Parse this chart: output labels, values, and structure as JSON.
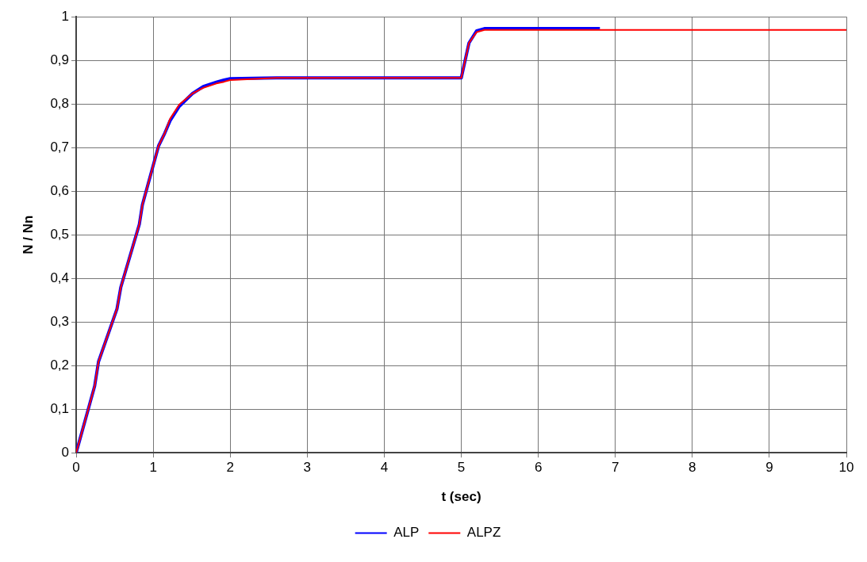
{
  "chart_data": {
    "type": "line",
    "xlabel": "t (sec)",
    "ylabel": "N / Nn",
    "xlim": [
      0,
      10
    ],
    "xticks": [
      0,
      1,
      2,
      3,
      4,
      5,
      6,
      7,
      8,
      9,
      10
    ],
    "ylim": [
      0,
      1
    ],
    "yticks": [
      {
        "value": 0,
        "label": "0"
      },
      {
        "value": 0.1,
        "label": "0,1"
      },
      {
        "value": 0.2,
        "label": "0,2"
      },
      {
        "value": 0.3,
        "label": "0,3"
      },
      {
        "value": 0.4,
        "label": "0,4"
      },
      {
        "value": 0.5,
        "label": "0,5"
      },
      {
        "value": 0.6,
        "label": "0,6"
      },
      {
        "value": 0.7,
        "label": "0,7"
      },
      {
        "value": 0.8,
        "label": "0,8"
      },
      {
        "value": 0.9,
        "label": "0,9"
      },
      {
        "value": 1,
        "label": "1"
      }
    ],
    "grid": true,
    "legend": "bottom",
    "marker": "none",
    "line_style": "solid",
    "series": [
      {
        "name": "ALP",
        "color": "#0000ff",
        "x": [
          0,
          0.24,
          0.29,
          0.53,
          0.58,
          0.82,
          0.86,
          1.07,
          1.15,
          1.22,
          1.34,
          1.51,
          1.65,
          1.82,
          1.92,
          2.0,
          2.6,
          5.0,
          5.05,
          5.1,
          5.2,
          5.3,
          6.8
        ],
        "values": [
          0,
          0.153,
          0.209,
          0.33,
          0.38,
          0.524,
          0.569,
          0.704,
          0.733,
          0.762,
          0.795,
          0.824,
          0.84,
          0.85,
          0.855,
          0.858,
          0.86,
          0.86,
          0.9,
          0.94,
          0.968,
          0.973,
          0.973
        ]
      },
      {
        "name": "ALPZ",
        "color": "#ff0000",
        "x": [
          0,
          0.24,
          0.29,
          0.53,
          0.58,
          0.82,
          0.86,
          1.07,
          1.15,
          1.22,
          1.34,
          1.51,
          1.65,
          1.82,
          1.92,
          2.0,
          2.6,
          5.0,
          5.05,
          5.1,
          5.2,
          5.3,
          10
        ],
        "values": [
          0,
          0.153,
          0.209,
          0.33,
          0.38,
          0.524,
          0.569,
          0.704,
          0.733,
          0.766,
          0.799,
          0.824,
          0.837,
          0.847,
          0.851,
          0.855,
          0.86,
          0.86,
          0.9,
          0.94,
          0.965,
          0.97,
          0.97
        ]
      }
    ]
  }
}
